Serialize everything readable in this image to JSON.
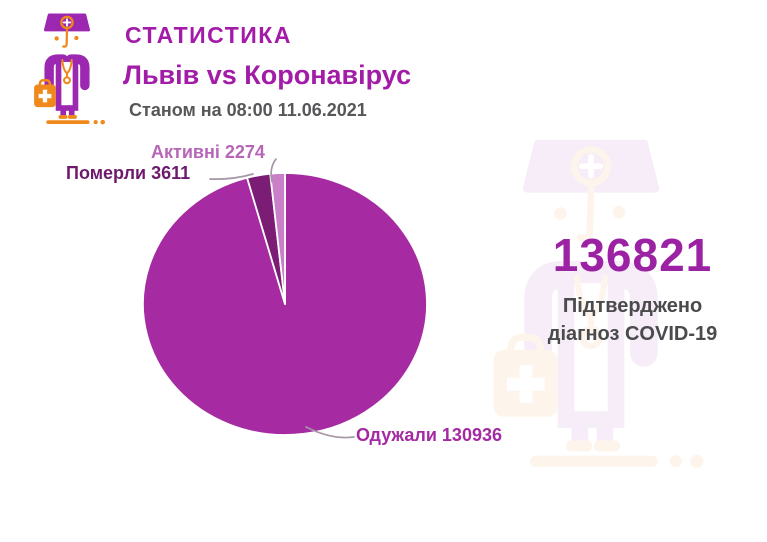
{
  "header": {
    "title": "СТАТИСТИКА",
    "subtitle": "Львів vs Коронавірус",
    "timestamp": "Станом на 08:00 11.06.2021"
  },
  "stats_panel": {
    "confirmed_total": "136821",
    "caption_line1": "Підтверджено",
    "caption_line2": "діагноз COVID-19"
  },
  "chart_data": {
    "type": "pie",
    "total": 136821,
    "start_angle_deg": 0,
    "direction": "clockwise",
    "grid": false,
    "legend_position": "callout-labels",
    "slices": [
      {
        "id": "recovered",
        "label": "Одужали",
        "value": 130936,
        "color": "#a62ba2",
        "callout": "Одужали 130936"
      },
      {
        "id": "died",
        "label": "Померли",
        "value": 3611,
        "color": "#7b1d74",
        "callout": "Померли 3611"
      },
      {
        "id": "active",
        "label": "Активні",
        "value": 2274,
        "color": "#c980c9",
        "callout": "Активні 2274"
      }
    ]
  },
  "colors": {
    "accent_magenta": "#a21ca8",
    "dark_caption_text": "#4b4b4d",
    "timestamp_gray": "#57575a",
    "mascot_purple": "#9c27b0",
    "mascot_orange": "#f0891c",
    "callout_line": "#a697a6",
    "background": "#ffffff"
  }
}
